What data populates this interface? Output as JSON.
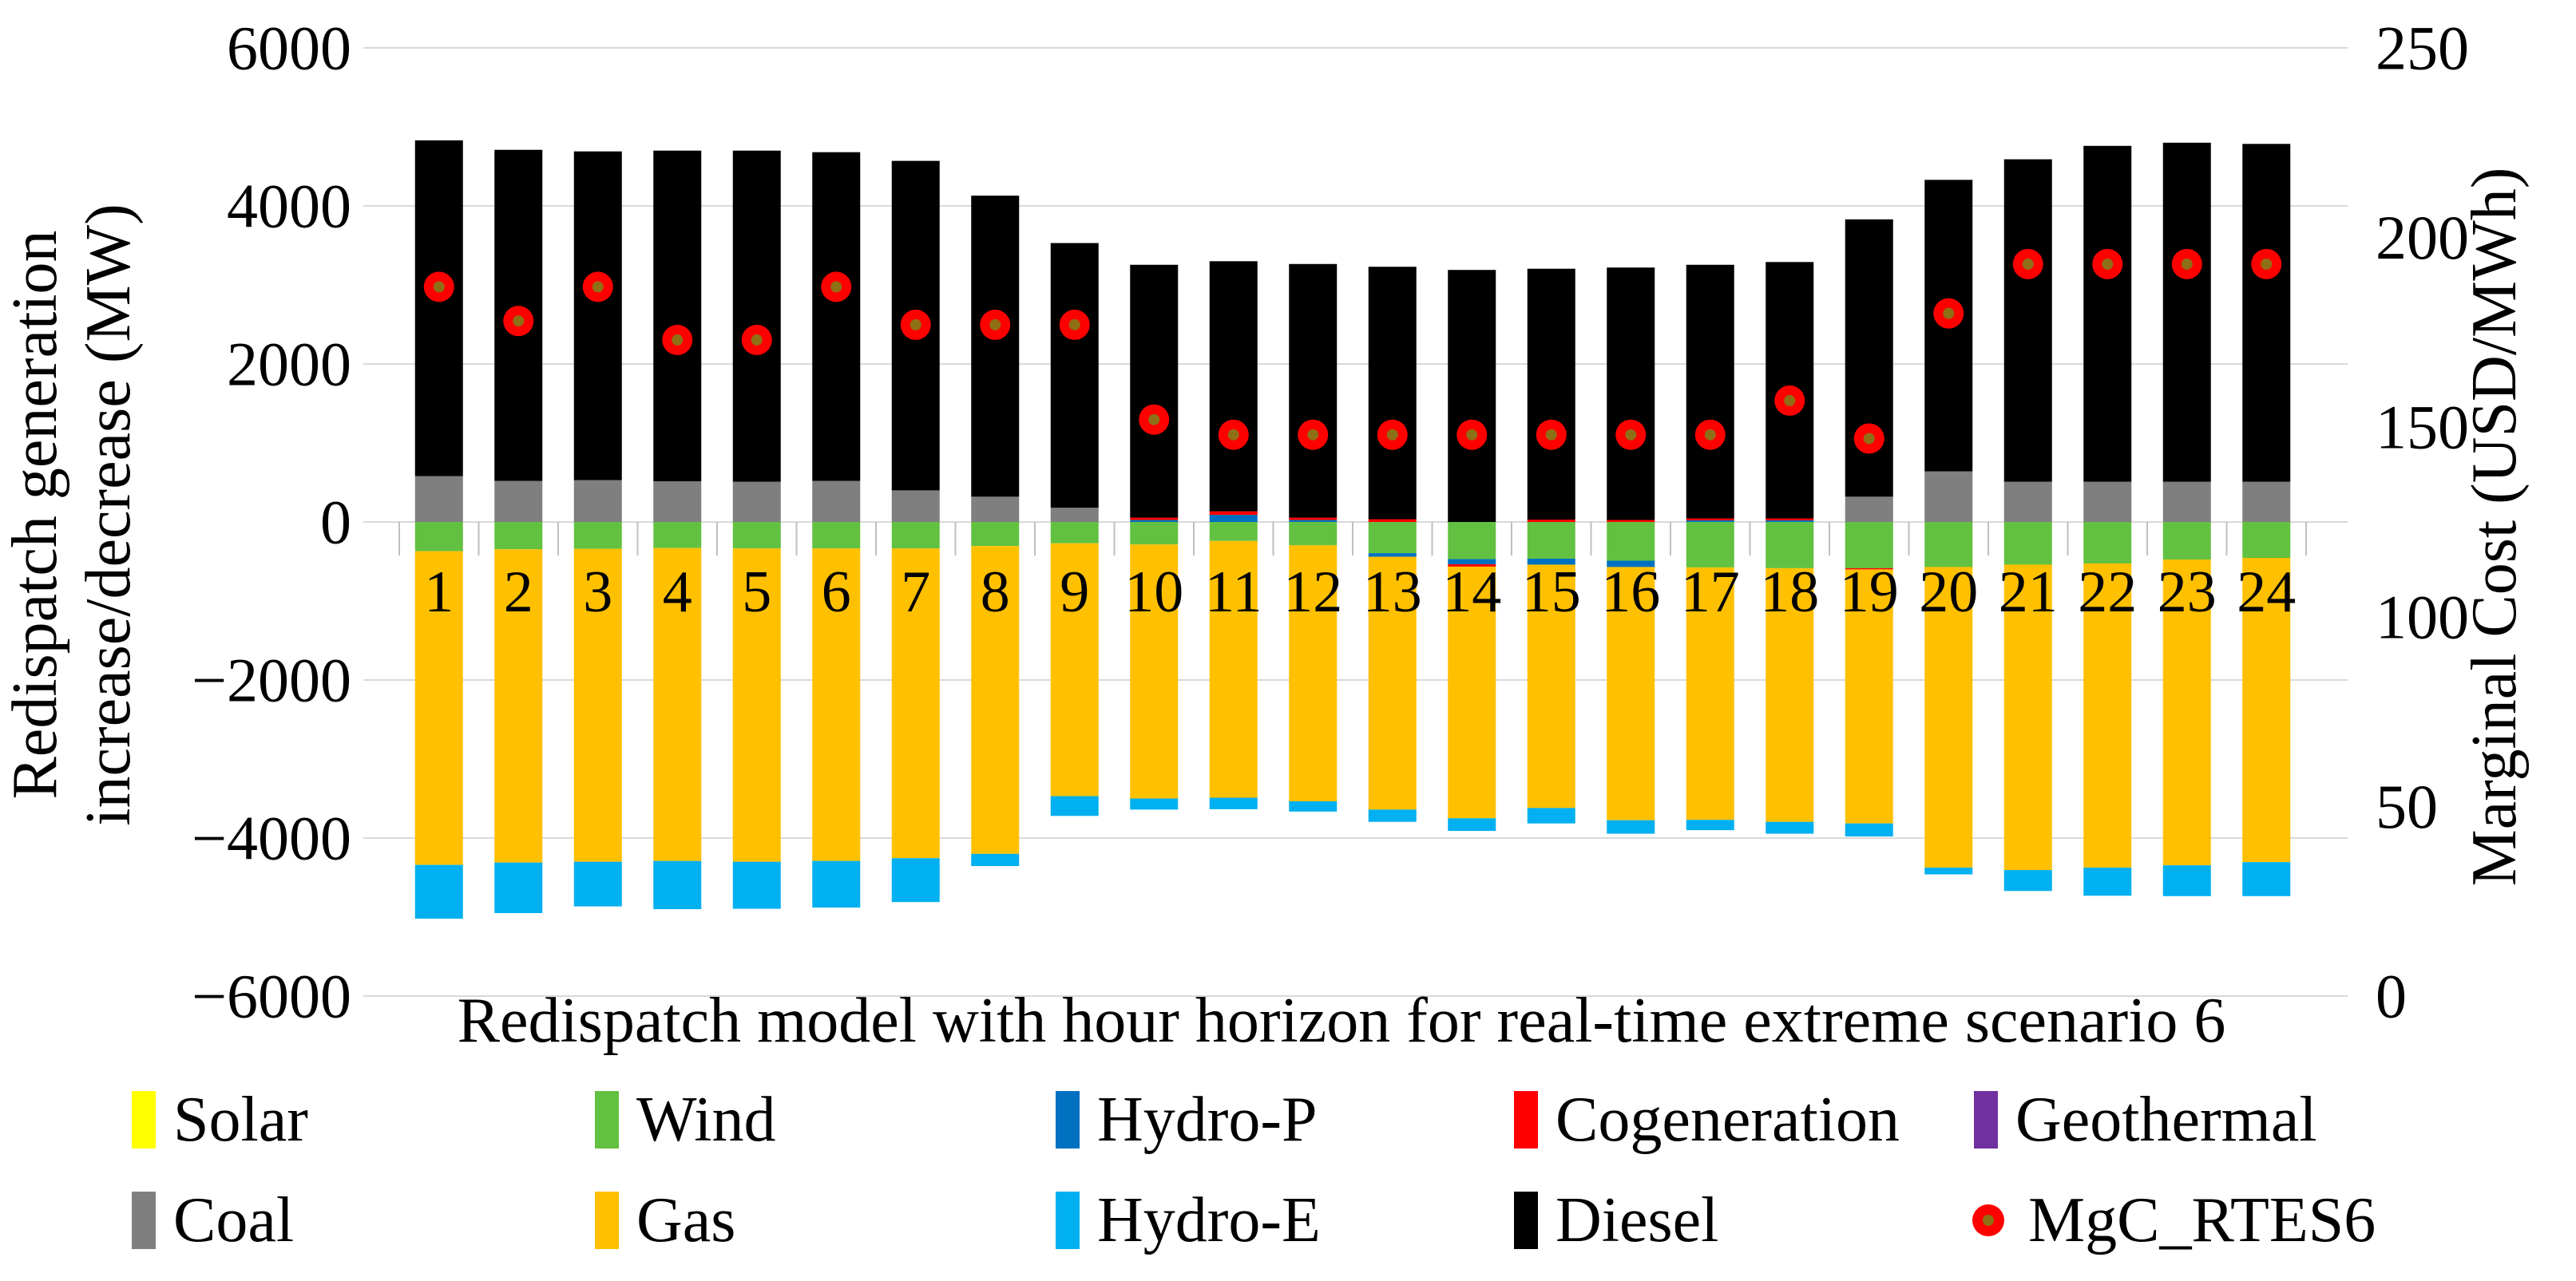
{
  "chart_data": {
    "type": "bar",
    "subtype": "stacked-bar-with-scatter-overlay",
    "title": "",
    "xlabel": "Redispatch model with hour horizon for real-time extreme scenario 6",
    "ylabel_left_line1": "Redispatch generation",
    "ylabel_left_line2": "increase/decrease (MW)",
    "ylabel_right": "Marginal Cost (USD/MWh)",
    "grid_on": true,
    "grid_color": "#D9D9D9",
    "tick_color": "#BFBFBF",
    "legend_position": "bottom",
    "y_left": {
      "min": -6000,
      "max": 6000,
      "tick_labels": [
        "6000",
        "4000",
        "2000",
        "0",
        "−2000",
        "−4000",
        "−6000"
      ],
      "tick_values": [
        6000,
        4000,
        2000,
        0,
        -2000,
        -4000,
        -6000
      ]
    },
    "y_right": {
      "min": 0,
      "max": 250,
      "tick_labels": [
        "250",
        "200",
        "150",
        "100",
        "50",
        "0"
      ],
      "tick_values": [
        250,
        200,
        150,
        100,
        50,
        0
      ]
    },
    "categories": [
      "1",
      "2",
      "3",
      "4",
      "5",
      "6",
      "7",
      "8",
      "9",
      "10",
      "11",
      "12",
      "13",
      "14",
      "15",
      "16",
      "17",
      "18",
      "19",
      "20",
      "21",
      "22",
      "23",
      "24"
    ],
    "series": [
      {
        "name": "Solar",
        "color": "#FFFF00",
        "values": [
          0,
          0,
          0,
          0,
          0,
          0,
          0,
          0,
          0,
          0,
          0,
          0,
          0,
          0,
          0,
          0,
          0,
          0,
          0,
          0,
          0,
          0,
          0,
          0
        ]
      },
      {
        "name": "Wind",
        "color": "#62C140",
        "values": [
          -370,
          -345,
          -340,
          -330,
          -335,
          -335,
          -335,
          -305,
          -270,
          -285,
          -240,
          -295,
          -395,
          -470,
          -465,
          -490,
          -575,
          -585,
          -585,
          -570,
          -540,
          -525,
          -475,
          -455
        ]
      },
      {
        "name": "Hydro-P",
        "color": "#0070C0",
        "values": [
          0,
          0,
          0,
          0,
          0,
          0,
          0,
          0,
          0,
          25,
          90,
          25,
          -45,
          -65,
          -75,
          -80,
          20,
          20,
          0,
          0,
          0,
          0,
          0,
          0
        ]
      },
      {
        "name": "Cogeneration",
        "color": "#FF0000",
        "values": [
          0,
          0,
          0,
          0,
          0,
          0,
          0,
          0,
          0,
          30,
          45,
          30,
          35,
          -30,
          30,
          25,
          25,
          25,
          -15,
          0,
          0,
          0,
          0,
          0
        ]
      },
      {
        "name": "Geothermal",
        "color": "#7030A0",
        "values": [
          0,
          0,
          0,
          0,
          0,
          0,
          0,
          0,
          0,
          0,
          0,
          0,
          0,
          0,
          0,
          0,
          0,
          0,
          0,
          0,
          0,
          0,
          0,
          0
        ]
      },
      {
        "name": "Coal",
        "color": "#7F7F7F",
        "values": [
          580,
          520,
          530,
          515,
          510,
          520,
          400,
          320,
          180,
          0,
          0,
          0,
          0,
          0,
          0,
          0,
          0,
          0,
          320,
          640,
          510,
          510,
          510,
          510
        ]
      },
      {
        "name": "Gas",
        "color": "#FFC000",
        "values": [
          -3970,
          -3965,
          -3960,
          -3960,
          -3965,
          -3955,
          -3920,
          -3895,
          -3200,
          -3215,
          -3250,
          -3240,
          -3200,
          -3185,
          -3080,
          -3205,
          -3195,
          -3210,
          -3215,
          -3805,
          -3865,
          -3850,
          -3870,
          -3850
        ]
      },
      {
        "name": "Hydro-E",
        "color": "#00B0F0",
        "values": [
          -680,
          -640,
          -565,
          -610,
          -595,
          -590,
          -555,
          -155,
          -250,
          -140,
          -145,
          -130,
          -155,
          -160,
          -195,
          -170,
          -130,
          -150,
          -165,
          -85,
          -265,
          -355,
          -390,
          -430
        ]
      },
      {
        "name": "Diesel",
        "color": "#000000",
        "values": [
          4250,
          4190,
          4160,
          4185,
          4190,
          4160,
          4170,
          3810,
          3350,
          3200,
          3165,
          3210,
          3195,
          3190,
          3175,
          3195,
          3210,
          3245,
          3510,
          3690,
          4080,
          4250,
          4290,
          4275
        ]
      }
    ],
    "marker_series": {
      "name": "MgC_RTES6",
      "axis": "right",
      "ring_color": "#FF0000",
      "center_color": "#8F6F15",
      "values": [
        187,
        178,
        187,
        173,
        173,
        187,
        177,
        177,
        177,
        152,
        148,
        148,
        148,
        148,
        148,
        148,
        148,
        157,
        147,
        180,
        193,
        193,
        193,
        193
      ]
    }
  }
}
